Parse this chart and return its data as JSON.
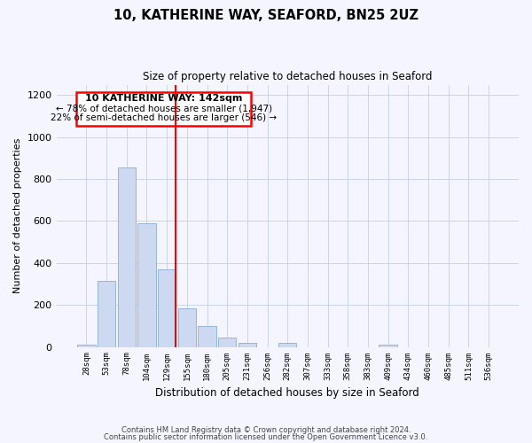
{
  "title": "10, KATHERINE WAY, SEAFORD, BN25 2UZ",
  "subtitle": "Size of property relative to detached houses in Seaford",
  "xlabel": "Distribution of detached houses by size in Seaford",
  "ylabel": "Number of detached properties",
  "bar_labels": [
    "28sqm",
    "53sqm",
    "78sqm",
    "104sqm",
    "129sqm",
    "155sqm",
    "180sqm",
    "205sqm",
    "231sqm",
    "256sqm",
    "282sqm",
    "307sqm",
    "333sqm",
    "358sqm",
    "383sqm",
    "409sqm",
    "434sqm",
    "460sqm",
    "485sqm",
    "511sqm",
    "536sqm"
  ],
  "bar_values": [
    12,
    315,
    855,
    590,
    370,
    185,
    100,
    45,
    20,
    0,
    18,
    0,
    0,
    0,
    0,
    10,
    0,
    0,
    0,
    0,
    0
  ],
  "bar_color": "#ccd9f0",
  "bar_edge_color": "#8badd4",
  "property_label": "10 KATHERINE WAY: 142sqm",
  "annotation_line1": "← 78% of detached houses are smaller (1,947)",
  "annotation_line2": "22% of semi-detached houses are larger (546) →",
  "ylim": [
    0,
    1200
  ],
  "yticks": [
    0,
    200,
    400,
    600,
    800,
    1000,
    1200
  ],
  "bg_color": "#f5f5ff",
  "grid_color": "#ccd5e8",
  "footer_line1": "Contains HM Land Registry data © Crown copyright and database right 2024.",
  "footer_line2": "Contains public sector information licensed under the Open Government Licence v3.0."
}
